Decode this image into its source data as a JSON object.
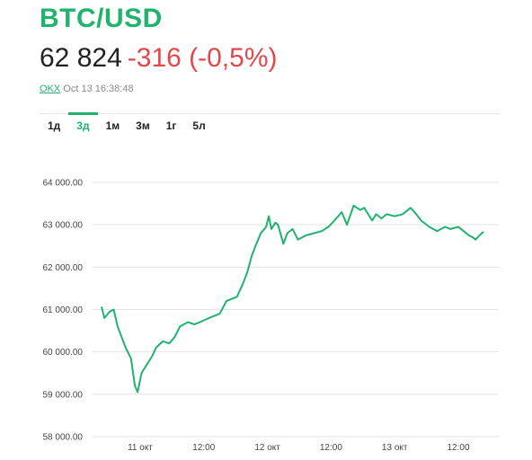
{
  "header": {
    "title": "BTC/USD",
    "price": "62 824",
    "change": "-316 (-0,5%)",
    "exchange": "OKX",
    "timestamp": "Oct 13 16:38:48"
  },
  "tabs": [
    {
      "label": "1д",
      "active": false
    },
    {
      "label": "3д",
      "active": true
    },
    {
      "label": "1м",
      "active": false
    },
    {
      "label": "3м",
      "active": false
    },
    {
      "label": "1г",
      "active": false
    },
    {
      "label": "5л",
      "active": false
    }
  ],
  "colors": {
    "accent": "#1fb36e",
    "negative": "#e2474b"
  },
  "chart_data": {
    "type": "line",
    "title": "",
    "xlabel": "",
    "ylabel": "",
    "ylim": [
      58000,
      64000
    ],
    "grid": true,
    "y_ticks": [
      58000,
      59000,
      60000,
      61000,
      62000,
      63000,
      64000
    ],
    "y_tick_labels": [
      "58 000.00",
      "59 000.00",
      "60 000.00",
      "61 000.00",
      "62 000.00",
      "63 000.00",
      "64 000.00"
    ],
    "x_ticks": [
      "2021-10-11 00:00",
      "2021-10-11 12:00",
      "2021-10-12 00:00",
      "2021-10-12 12:00",
      "2021-10-13 00:00",
      "2021-10-13 12:00"
    ],
    "x_tick_labels": [
      "11 окт",
      "12:00",
      "12 окт",
      "12:00",
      "13 окт",
      "12:00"
    ],
    "series": [
      {
        "color": "#1fb36e",
        "x": [
          "2021-10-10 16:45",
          "2021-10-10 17:15",
          "2021-10-10 18:15",
          "2021-10-10 19:00",
          "2021-10-10 19:45",
          "2021-10-10 20:30",
          "2021-10-10 21:15",
          "2021-10-10 22:15",
          "2021-10-10 23:00",
          "2021-10-10 23:30",
          "2021-10-11 00:15",
          "2021-10-11 00:45",
          "2021-10-11 01:30",
          "2021-10-11 02:15",
          "2021-10-11 03:00",
          "2021-10-11 04:15",
          "2021-10-11 05:30",
          "2021-10-11 06:30",
          "2021-10-11 07:30",
          "2021-10-11 09:00",
          "2021-10-11 10:15",
          "2021-10-11 11:15",
          "2021-10-11 13:00",
          "2021-10-11 14:00",
          "2021-10-11 15:00",
          "2021-10-11 16:15",
          "2021-10-11 17:15",
          "2021-10-11 18:15",
          "2021-10-11 19:30",
          "2021-10-11 20:15",
          "2021-10-11 21:00",
          "2021-10-11 21:45",
          "2021-10-11 22:45",
          "2021-10-11 23:45",
          "2021-10-12 00:15",
          "2021-10-12 00:45",
          "2021-10-12 01:30",
          "2021-10-12 02:00",
          "2021-10-12 03:00",
          "2021-10-12 03:45",
          "2021-10-12 04:45",
          "2021-10-12 05:45",
          "2021-10-12 07:15",
          "2021-10-12 08:45",
          "2021-10-12 10:15",
          "2021-10-12 11:30",
          "2021-10-12 13:00",
          "2021-10-12 14:00",
          "2021-10-12 15:00",
          "2021-10-12 16:15",
          "2021-10-12 17:30",
          "2021-10-12 18:15",
          "2021-10-12 19:00",
          "2021-10-12 19:45",
          "2021-10-12 20:30",
          "2021-10-12 21:30",
          "2021-10-12 22:30",
          "2021-10-13 00:00",
          "2021-10-13 01:30",
          "2021-10-13 03:00",
          "2021-10-13 03:45",
          "2021-10-13 05:00",
          "2021-10-13 06:30",
          "2021-10-13 08:00",
          "2021-10-13 09:30",
          "2021-10-13 10:30",
          "2021-10-13 12:00",
          "2021-10-13 13:00",
          "2021-10-13 14:00",
          "2021-10-13 14:45",
          "2021-10-13 15:15",
          "2021-10-13 16:00",
          "2021-10-13 16:38"
        ],
        "values": [
          61050,
          60800,
          60950,
          61000,
          60600,
          60350,
          60100,
          59850,
          59200,
          59050,
          59500,
          59600,
          59750,
          59900,
          60100,
          60250,
          60200,
          60350,
          60600,
          60700,
          60650,
          60700,
          60800,
          60850,
          60900,
          61200,
          61250,
          61300,
          61650,
          61900,
          62250,
          62500,
          62800,
          62950,
          63200,
          62900,
          63050,
          63000,
          62550,
          62800,
          62900,
          62650,
          62750,
          62800,
          62850,
          62950,
          63150,
          63300,
          63000,
          63450,
          63350,
          63400,
          63250,
          63100,
          63250,
          63150,
          63250,
          63200,
          63250,
          63400,
          63300,
          63100,
          62950,
          62850,
          62950,
          62900,
          62950,
          62850,
          62750,
          62700,
          62650,
          62750,
          62824
        ]
      }
    ]
  }
}
